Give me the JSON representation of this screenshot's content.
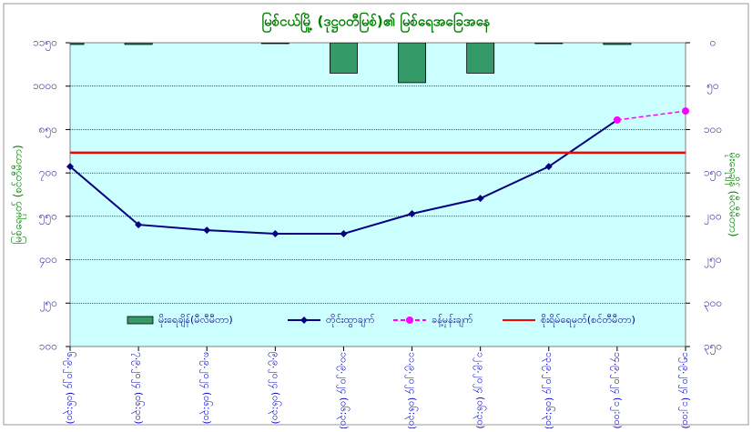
{
  "chart_data": {
    "type": "combo",
    "title": "မြစ်ငယ်မြို့ (ဒုဋ္ဌဝတီမြစ်)၏ မြစ်ရေအခြေအနေ",
    "ylabel": "မြစ်ရေမှတ် (စင်တီမီတာ)",
    "y2label": "မိုးရေချိန် (မီလီမီတာ)",
    "categories": [
      "၆.၉.၂၀၂၄ (၀၆:၃၀)",
      "၇.၉.၂၀၂၄ (၀၆:၃၀)",
      "၈.၉.၂၀၂၄ (၀၆:၃၀)",
      "၉.၉.၂၀၂၄ (၀၆:၃၀)",
      "၁၀.၉.၂၀၂၄ (၀၆:၃၀)",
      "၁၁.၉.၂၀၂၄ (၀၆:၃၀)",
      "၁၂.၉.၂၀၂၄ (၀၆:၃၀)",
      "၁၃.၉.၂၀၂၄ (၀၆:၃၀)",
      "၁၄.၉.၂၀၂၄ (၁၂:၀၀)",
      "၁၅.၉.၂၀၂၄ (၁၂:၀၀)"
    ],
    "ylim": [
      100,
      1150
    ],
    "yticks": [
      {
        "value": 100,
        "label": "၁၀၀"
      },
      {
        "value": 250,
        "label": "၂၅၀"
      },
      {
        "value": 400,
        "label": "၄၀၀"
      },
      {
        "value": 550,
        "label": "၅၅၀"
      },
      {
        "value": 700,
        "label": "၇၀၀"
      },
      {
        "value": 850,
        "label": "၈၅၀"
      },
      {
        "value": 1000,
        "label": "၁၀၀၀"
      },
      {
        "value": 1150,
        "label": "၁၁၅၀"
      }
    ],
    "y2lim": [
      0,
      350
    ],
    "y2_inverted": true,
    "y2ticks": [
      {
        "value": 0,
        "label": "၀"
      },
      {
        "value": 50,
        "label": "၅၀"
      },
      {
        "value": 100,
        "label": "၁၀၀"
      },
      {
        "value": 150,
        "label": "၁၅၀"
      },
      {
        "value": 200,
        "label": "၂၀၀"
      },
      {
        "value": 250,
        "label": "၂၅၀"
      },
      {
        "value": 300,
        "label": "၃၀၀"
      },
      {
        "value": 350,
        "label": "၃၅၀"
      }
    ],
    "grid": true,
    "series": [
      {
        "name": "မိုးရေချိန်(မီလီမီတာ)",
        "kind": "bar",
        "axis": "y2",
        "color": "#339966",
        "values": [
          2,
          2,
          0,
          1,
          35,
          46,
          35,
          1,
          2,
          null
        ]
      },
      {
        "name": "တိုင်းထွာချက်",
        "kind": "line",
        "color": "#000080",
        "values": [
          722,
          521,
          502,
          490,
          490,
          559,
          612,
          722,
          883,
          null
        ]
      },
      {
        "name": "ခန့်မှန်းချက်",
        "kind": "dashed",
        "color": "#ff00ff",
        "values": [
          null,
          null,
          null,
          null,
          null,
          null,
          null,
          null,
          883,
          914
        ]
      },
      {
        "name": "စိုးရိမ်ရေမှတ်(စင်တီမီတာ)",
        "kind": "hline",
        "color": "#ff0000",
        "value": 770
      }
    ]
  }
}
